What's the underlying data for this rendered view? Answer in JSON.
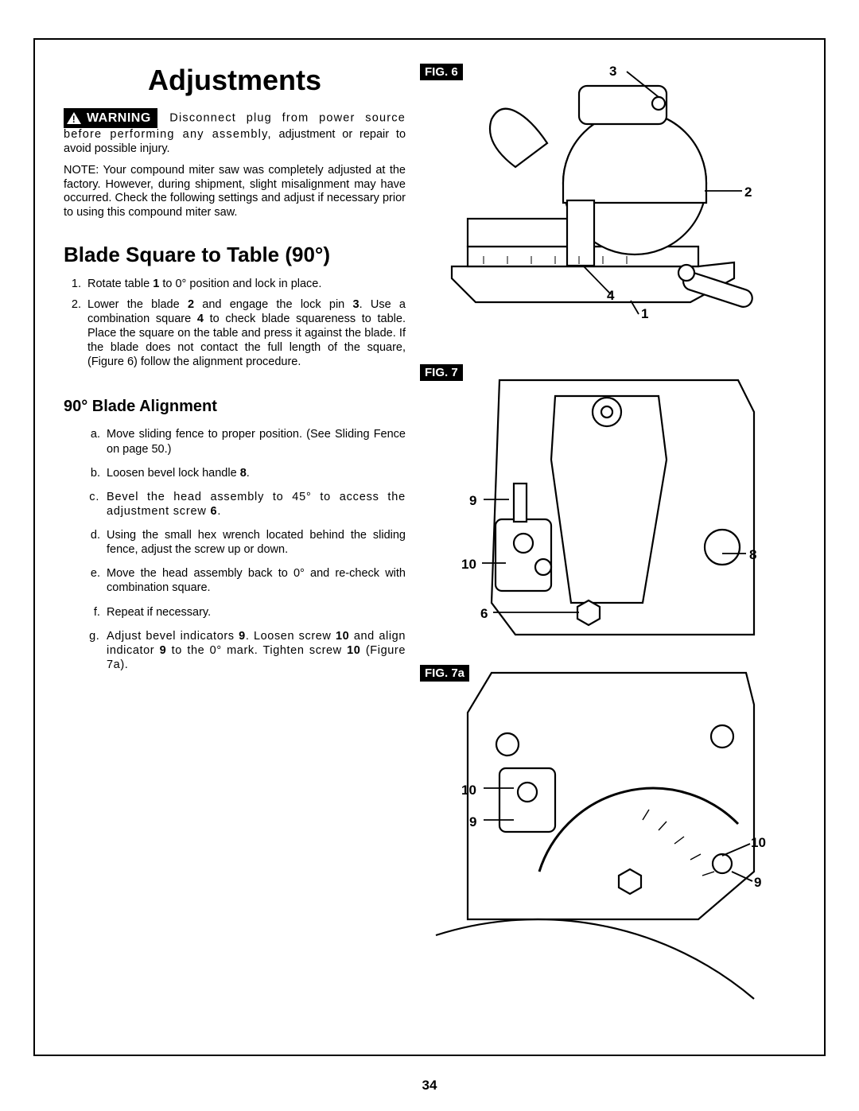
{
  "page_number": "34",
  "title": "Adjustments",
  "warning": {
    "badge": "WARNING",
    "text_lead": "Disconnect plug from power source before performing any assembly,",
    "text_rest": "adjustment or repair to avoid possible injury."
  },
  "note": "NOTE:  Your compound miter saw was completely adjusted at the factory.  However, during shipment, slight misalignment may have occurred.  Check the following settings and adjust if necessary prior to using this compound miter saw.",
  "section_title": "Blade Square to Table (90°)",
  "steps": [
    "Rotate table <b>1</b> to 0° position and lock in place.",
    "Lower the blade <b>2</b> and engage the lock pin <b>3</b>. Use a combination square <b>4</b> to check blade squareness to table.  Place the square on the table and press it against the blade. If the blade does not contact the full length of the square, (Figure 6) follow the alignment procedure."
  ],
  "sub_title": "90° Blade Alignment",
  "alpha_steps": [
    "Move sliding fence to proper position. (See Sliding Fence on page 50.)",
    "Loosen bevel lock handle <b>8</b>.",
    "Bevel the head assembly to 45° to access the adjustment screw <b>6</b>.",
    "Using the small hex wrench located behind the sliding fence, adjust the screw up or down.",
    "Move the head assembly back to 0° and re-check with combination square.",
    "Repeat if necessary.",
    "Adjust bevel indicators <b>9</b>. Loosen screw <b>10</b> and align indicator <b>9</b> to the 0° mark. Tighten screw <b>10</b> (Figure 7a)."
  ],
  "figures": {
    "fig6": {
      "label": "FIG. 6",
      "callouts": {
        "c1": "1",
        "c2": "2",
        "c3": "3",
        "c4": "4"
      }
    },
    "fig7": {
      "label": "FIG. 7",
      "callouts": {
        "c6": "6",
        "c8": "8",
        "c9": "9",
        "c10": "10"
      }
    },
    "fig7a": {
      "label": "FIG. 7a",
      "callouts": {
        "c9a": "9",
        "c9b": "9",
        "c10a": "10",
        "c10b": "10"
      }
    }
  },
  "colors": {
    "text": "#000000",
    "bg": "#ffffff"
  },
  "typography": {
    "title_size_pt": 28,
    "section_size_pt": 20,
    "body_size_pt": 11
  }
}
